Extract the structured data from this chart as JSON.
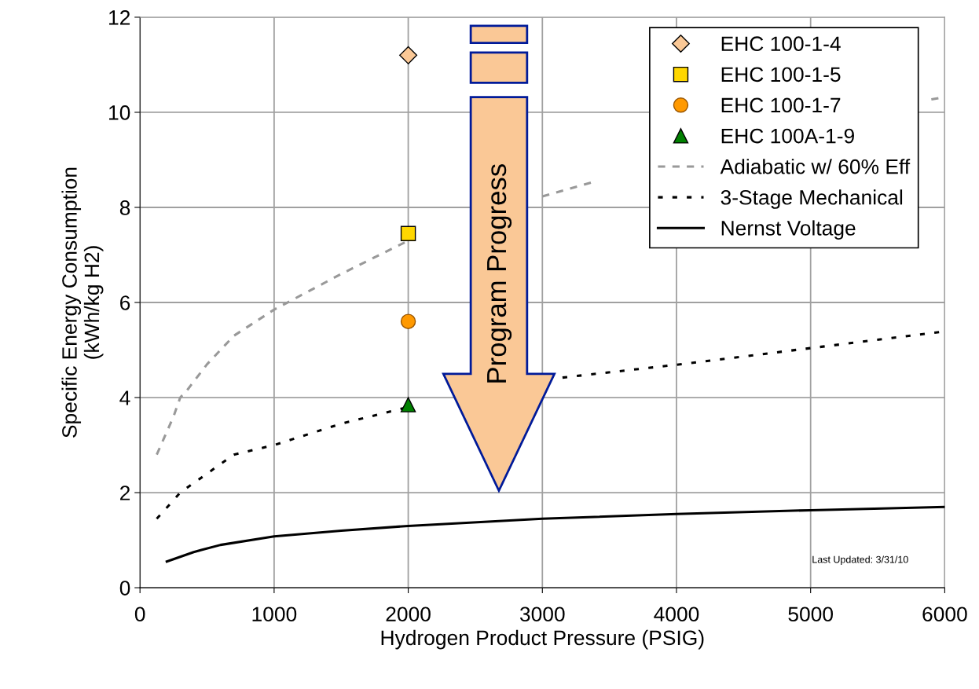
{
  "chart_data": {
    "type": "scatter",
    "xlabel": "Hydrogen Product Pressure (PSIG)",
    "ylabel": "Specific Energy Consumption\n(kWh/kg H2)",
    "xlim": [
      0,
      6000
    ],
    "ylim": [
      0,
      12
    ],
    "xticks": [
      0,
      1000,
      2000,
      3000,
      4000,
      5000,
      6000
    ],
    "yticks": [
      0,
      2,
      4,
      6,
      8,
      10,
      12
    ],
    "grid": true,
    "legend": "top right",
    "series": [
      {
        "name": "EHC 100-1-4",
        "marker": "diamond",
        "color": "#fac896",
        "x": [
          2000
        ],
        "values": [
          11.2
        ]
      },
      {
        "name": "EHC 100-1-5",
        "marker": "square",
        "color": "#ffd700",
        "x": [
          2000
        ],
        "values": [
          7.45
        ]
      },
      {
        "name": "EHC 100-1-7",
        "marker": "circle",
        "color": "#ff9900",
        "x": [
          2000
        ],
        "values": [
          5.6
        ]
      },
      {
        "name": "EHC 100A-1-9",
        "marker": "triangle",
        "color": "#008000",
        "x": [
          2000
        ],
        "values": [
          3.85
        ]
      },
      {
        "name": "Adiabatic w/ 60% Eff",
        "type": "line",
        "line_style": "dashed",
        "color": "#999999",
        "x": [
          125,
          250,
          300,
          350,
          500,
          700,
          1000,
          1500,
          2000,
          2500,
          3000,
          3400,
          3700,
          5900,
          6000
        ],
        "values": [
          2.8,
          3.6,
          4.0,
          4.15,
          4.7,
          5.3,
          5.85,
          6.6,
          7.3,
          null,
          8.23,
          8.55,
          null,
          10.27,
          10.32
        ]
      },
      {
        "name": "3-Stage Mechanical",
        "type": "line",
        "line_style": "dotted",
        "color": "#000000",
        "x": [
          125,
          300,
          400,
          700,
          1000,
          1500,
          2000,
          2500,
          3150,
          4000,
          5000,
          6000
        ],
        "values": [
          1.45,
          2.0,
          2.2,
          2.8,
          3.0,
          3.45,
          3.8,
          null,
          4.42,
          4.69,
          5.04,
          5.39
        ]
      },
      {
        "name": "Nernst Voltage",
        "type": "line",
        "line_style": "solid",
        "color": "#000000",
        "x": [
          200,
          400,
          600,
          1000,
          1500,
          2000,
          3000,
          4000,
          5000,
          6000
        ],
        "values": [
          0.55,
          0.75,
          0.9,
          1.08,
          1.2,
          1.3,
          1.45,
          1.55,
          1.63,
          1.7
        ]
      }
    ],
    "annotations": [
      "Program Progress",
      "Last Updated: 3/31/10"
    ]
  }
}
